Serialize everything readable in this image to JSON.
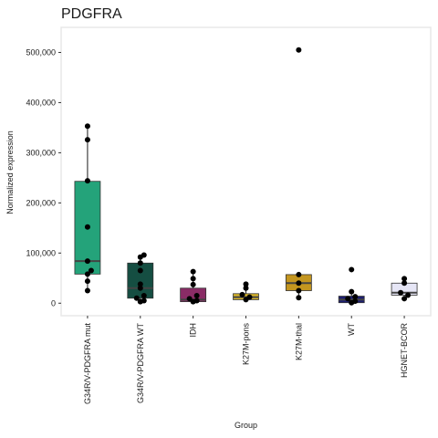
{
  "chart_data": {
    "type": "box",
    "title": "PDGFRA",
    "xlabel": "Group",
    "ylabel": "Normalized expression",
    "ylim": [
      -25000,
      550000
    ],
    "yticks": [
      0,
      100000,
      200000,
      300000,
      400000,
      500000
    ],
    "ytick_labels": [
      "0",
      "100,000",
      "200,000",
      "300,000",
      "400,000",
      "500,000"
    ],
    "grid": false,
    "categories": [
      "G34R/V-PDGFRA mut",
      "G34R/V-PDGFRA WT",
      "IDH",
      "K27M-pons",
      "K27M-thal",
      "WT",
      "HGNET-BCOR"
    ],
    "boxes": [
      {
        "q1": 58000,
        "median": 84000,
        "q3": 243000,
        "whisker_low": 25000,
        "whisker_high": 353000,
        "color": "#24a37a"
      },
      {
        "q1": 10000,
        "median": 30000,
        "q3": 80000,
        "whisker_low": 3000,
        "whisker_high": 96000,
        "color": "#154e42"
      },
      {
        "q1": 3000,
        "median": 7000,
        "q3": 30000,
        "whisker_low": 0,
        "whisker_high": 63000,
        "color": "#8a2c66"
      },
      {
        "q1": 7000,
        "median": 12000,
        "q3": 19000,
        "whisker_low": 5000,
        "whisker_high": 38000,
        "color": "#d8b52a"
      },
      {
        "q1": 25000,
        "median": 40000,
        "q3": 57000,
        "whisker_low": 11000,
        "whisker_high": 60000,
        "color": "#c4961f"
      },
      {
        "q1": 1000,
        "median": 7000,
        "q3": 14000,
        "whisker_low": 0,
        "whisker_high": 23000,
        "color": "#1c1e70"
      },
      {
        "q1": 16000,
        "median": 21000,
        "q3": 40000,
        "whisker_low": 9000,
        "whisker_high": 49000,
        "color": "#e6e6f6"
      }
    ],
    "points": [
      [
        353000,
        326000,
        244000,
        152000,
        84000,
        65000,
        58000,
        44000,
        25000
      ],
      [
        96000,
        92000,
        80000,
        65000,
        38000,
        30000,
        15000,
        10000,
        5000,
        3000
      ],
      [
        63000,
        49000,
        37000,
        15000,
        9000,
        5000,
        3000
      ],
      [
        38000,
        30000,
        17000,
        12000,
        7000
      ],
      [
        505000,
        57000,
        40000,
        25000,
        11000
      ],
      [
        67000,
        23000,
        13000,
        9000,
        4000,
        1000
      ],
      [
        49000,
        40000,
        21000,
        16000,
        9000
      ]
    ]
  }
}
